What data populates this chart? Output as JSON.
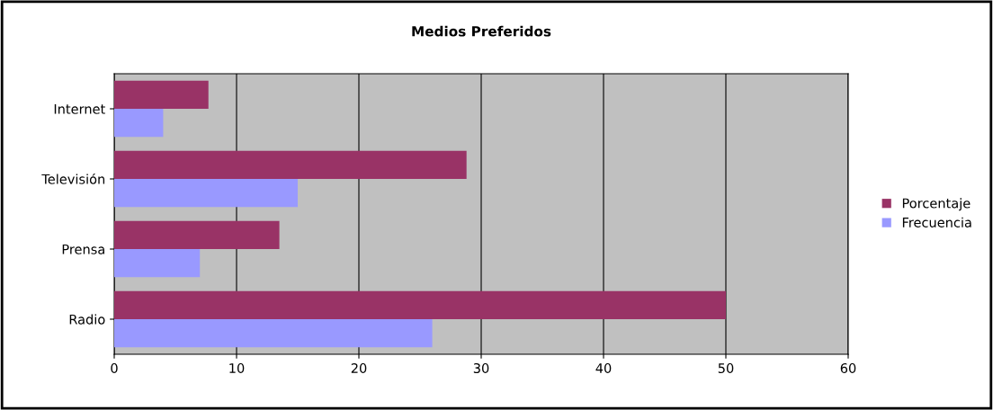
{
  "chart_data": {
    "type": "bar",
    "orientation": "horizontal",
    "title": "Medios Preferidos",
    "categories": [
      "Internet",
      "Televisión",
      "Prensa",
      "Radio"
    ],
    "series": [
      {
        "name": "Porcentaje",
        "color": "#993366",
        "values": [
          7.7,
          28.8,
          13.5,
          50
        ]
      },
      {
        "name": "Frecuencia",
        "color": "#9999ff",
        "values": [
          4,
          15,
          7,
          26
        ]
      }
    ],
    "xlim": [
      0,
      60
    ],
    "xticks": [
      0,
      10,
      20,
      30,
      40,
      50,
      60
    ],
    "grid": "x",
    "legend": "right"
  }
}
